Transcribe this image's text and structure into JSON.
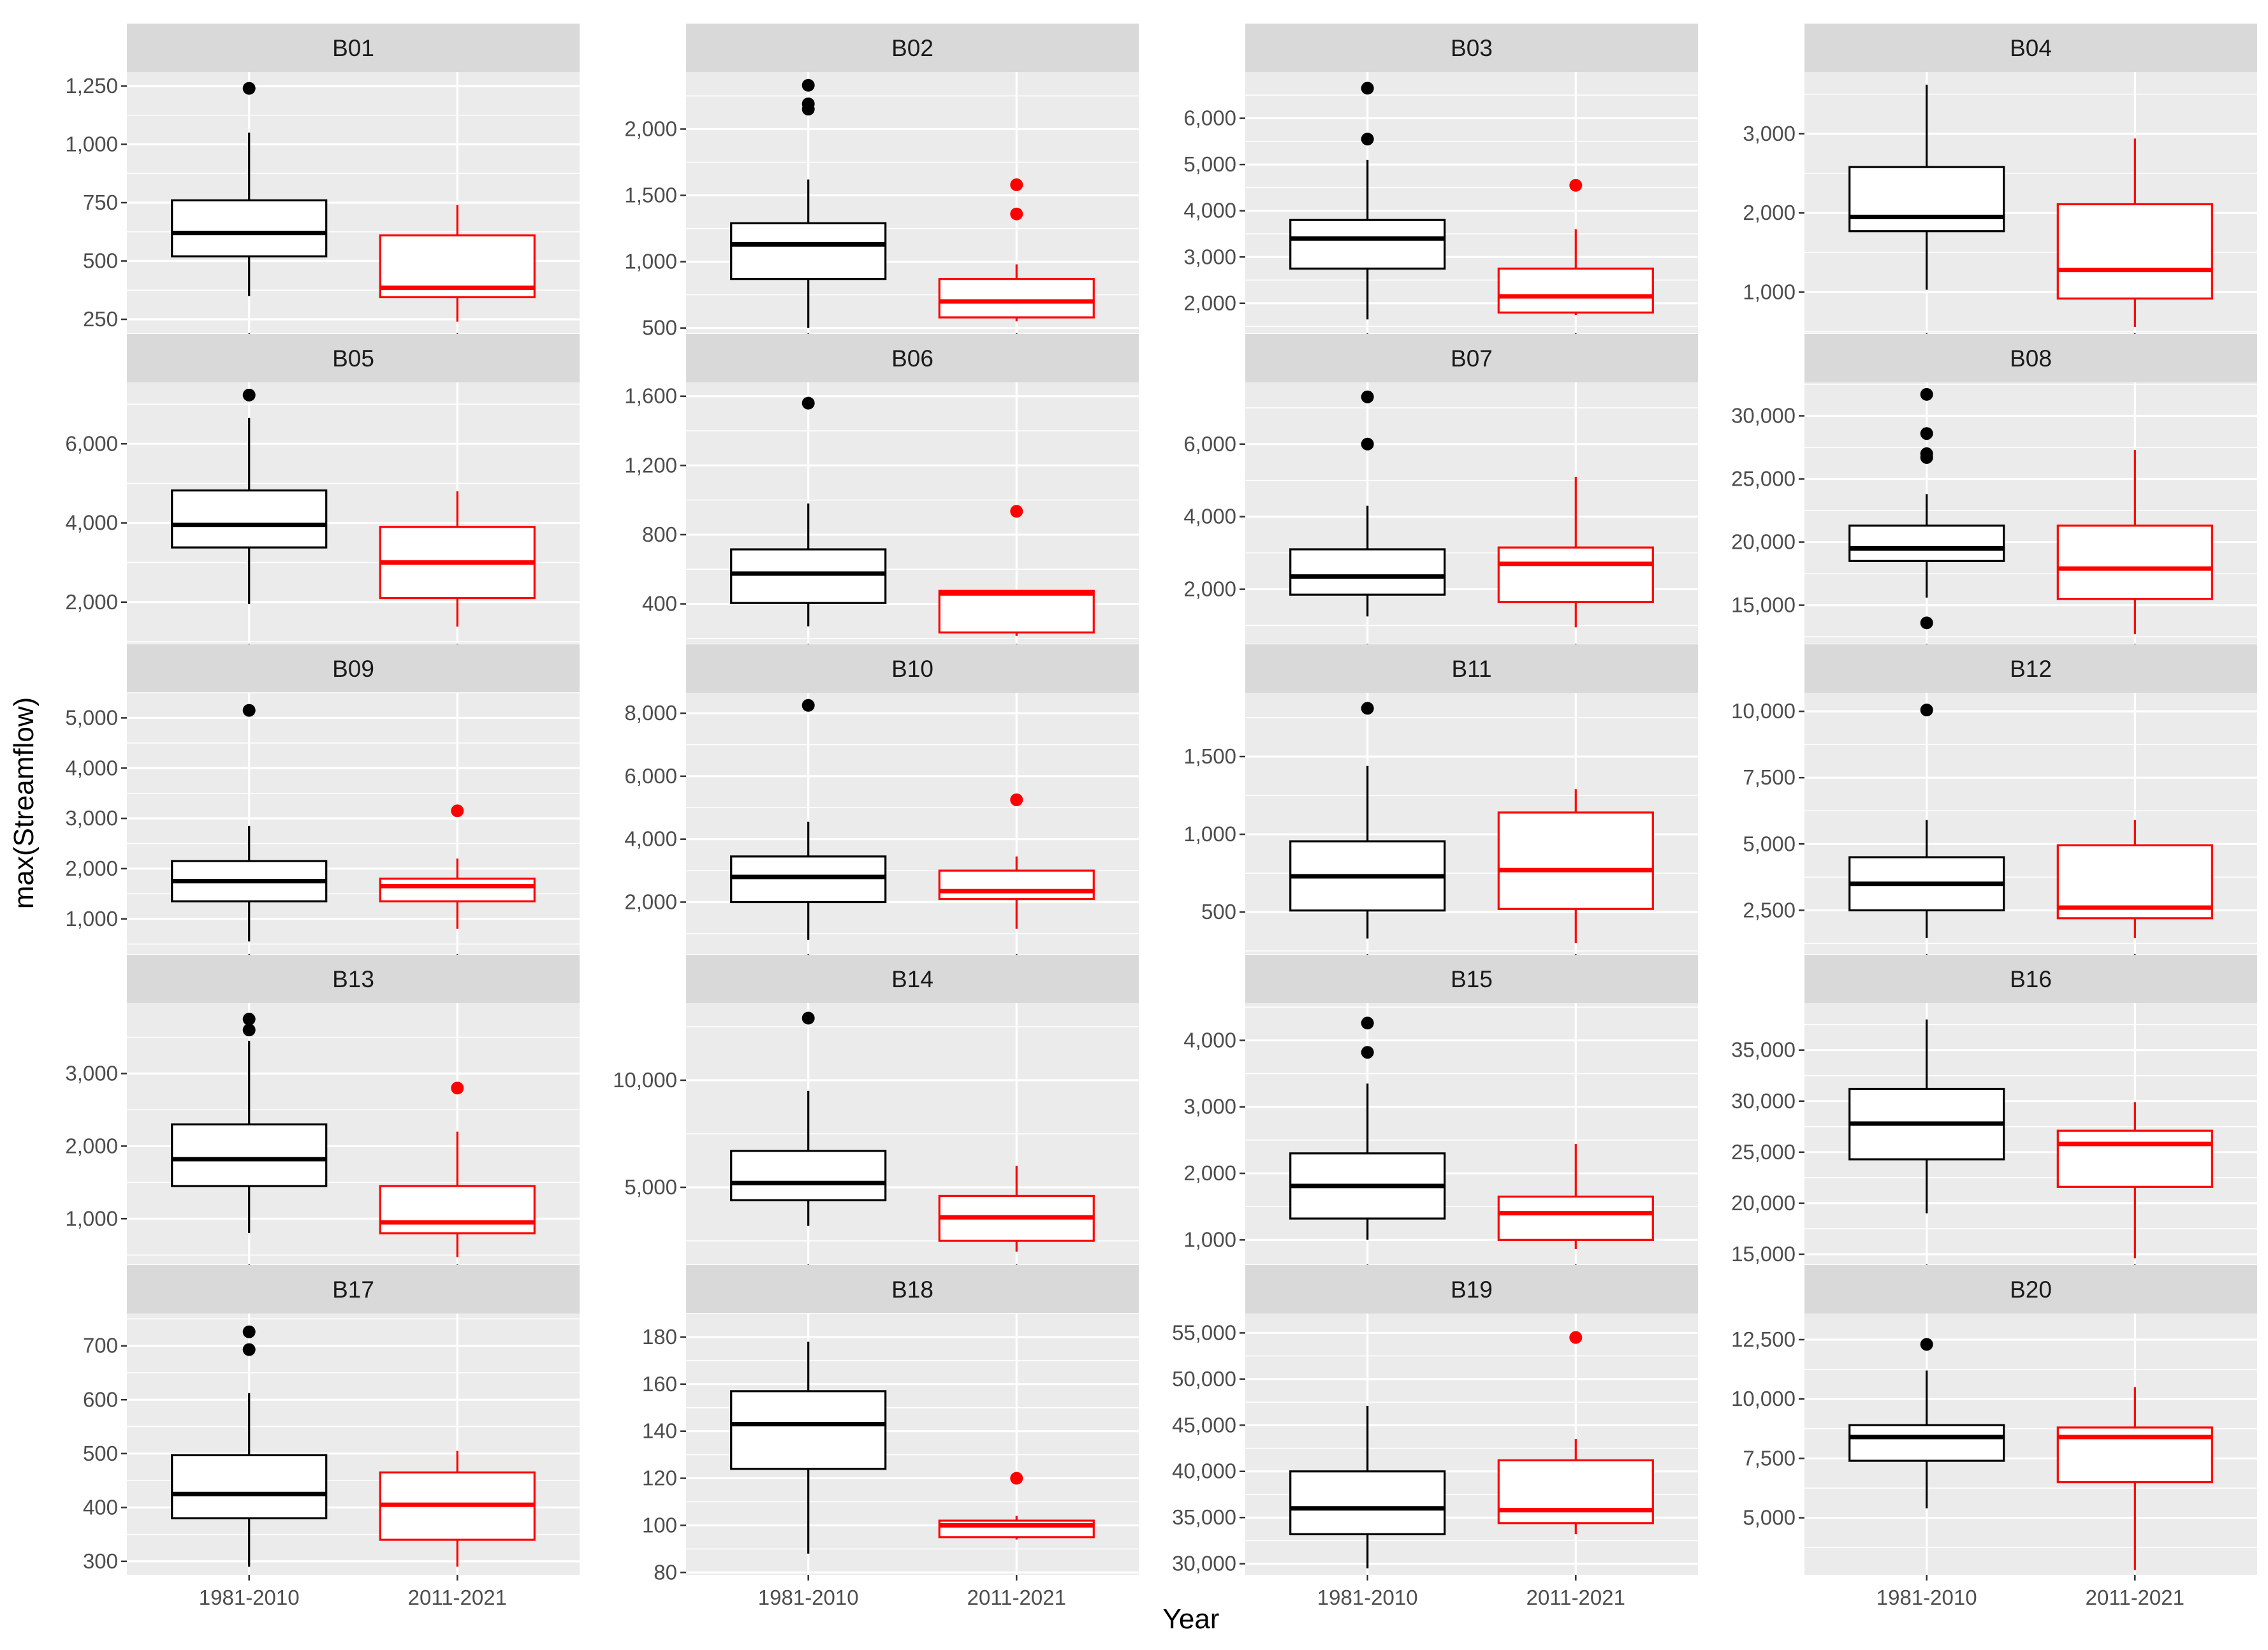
{
  "figure": {
    "xlabel": "Year",
    "ylabel": "max(Streamflow)",
    "categories": [
      "1981-2010",
      "2011-2021"
    ],
    "colors": {
      "1981-2010": "#000000",
      "2011-2021": "#ff0000",
      "panel_background": "#ebebeb",
      "strip_background": "#d9d9d9",
      "gridline": "#ffffff"
    }
  },
  "chart_data": [
    {
      "type": "box",
      "panel": "B01",
      "ylim": [
        190,
        1310
      ],
      "yticks": [
        250,
        500,
        750,
        1000,
        1250
      ],
      "yticklabels": [
        "250",
        "500",
        "750",
        "1,000",
        "1,250"
      ],
      "series": [
        {
          "name": "1981-2010",
          "whisker_low": 350,
          "q1": 520,
          "median": 620,
          "q3": 760,
          "whisker_high": 1050,
          "outliers": [
            1240
          ]
        },
        {
          "name": "2011-2021",
          "whisker_low": 240,
          "q1": 345,
          "median": 385,
          "q3": 610,
          "whisker_high": 740,
          "outliers": []
        }
      ]
    },
    {
      "type": "box",
      "panel": "B02",
      "ylim": [
        460,
        2430
      ],
      "yticks": [
        500,
        1000,
        1500,
        2000
      ],
      "yticklabels": [
        "500",
        "1,000",
        "1,500",
        "2,000"
      ],
      "series": [
        {
          "name": "1981-2010",
          "whisker_low": 500,
          "q1": 870,
          "median": 1130,
          "q3": 1290,
          "whisker_high": 1620,
          "outliers": [
            2150,
            2190,
            2330
          ]
        },
        {
          "name": "2011-2021",
          "whisker_low": 550,
          "q1": 580,
          "median": 700,
          "q3": 870,
          "whisker_high": 980,
          "outliers": [
            1360,
            1580
          ]
        }
      ]
    },
    {
      "type": "box",
      "panel": "B03",
      "ylim": [
        1350,
        7000
      ],
      "yticks": [
        2000,
        3000,
        4000,
        5000,
        6000
      ],
      "yticklabels": [
        "2,000",
        "3,000",
        "4,000",
        "5,000",
        "6,000"
      ],
      "series": [
        {
          "name": "1981-2010",
          "whisker_low": 1650,
          "q1": 2750,
          "median": 3400,
          "q3": 3800,
          "whisker_high": 5100,
          "outliers": [
            5550,
            6650
          ]
        },
        {
          "name": "2011-2021",
          "whisker_low": 1750,
          "q1": 1800,
          "median": 2150,
          "q3": 2750,
          "whisker_high": 3600,
          "outliers": [
            4550
          ]
        }
      ]
    },
    {
      "type": "box",
      "panel": "B04",
      "ylim": [
        480,
        3780
      ],
      "yticks": [
        1000,
        2000,
        3000
      ],
      "yticklabels": [
        "1,000",
        "2,000",
        "3,000"
      ],
      "series": [
        {
          "name": "1981-2010",
          "whisker_low": 1030,
          "q1": 1770,
          "median": 1950,
          "q3": 2580,
          "whisker_high": 3620,
          "outliers": []
        },
        {
          "name": "2011-2021",
          "whisker_low": 560,
          "q1": 920,
          "median": 1280,
          "q3": 2110,
          "whisker_high": 2940,
          "outliers": []
        }
      ]
    },
    {
      "type": "box",
      "panel": "B05",
      "ylim": [
        950,
        7550
      ],
      "yticks": [
        2000,
        4000,
        6000
      ],
      "yticklabels": [
        "2,000",
        "4,000",
        "6,000"
      ],
      "series": [
        {
          "name": "1981-2010",
          "whisker_low": 1950,
          "q1": 3380,
          "median": 3950,
          "q3": 4820,
          "whisker_high": 6650,
          "outliers": [
            7230
          ]
        },
        {
          "name": "2011-2021",
          "whisker_low": 1380,
          "q1": 2100,
          "median": 3000,
          "q3": 3900,
          "whisker_high": 4800,
          "outliers": []
        }
      ]
    },
    {
      "type": "box",
      "panel": "B06",
      "ylim": [
        170,
        1680
      ],
      "yticks": [
        400,
        800,
        1200,
        1600
      ],
      "yticklabels": [
        "400",
        "800",
        "1,200",
        "1,600"
      ],
      "series": [
        {
          "name": "1981-2010",
          "whisker_low": 270,
          "q1": 405,
          "median": 575,
          "q3": 715,
          "whisker_high": 980,
          "outliers": [
            1560
          ]
        },
        {
          "name": "2011-2021",
          "whisker_low": 215,
          "q1": 235,
          "median": 460,
          "q3": 475,
          "whisker_high": 480,
          "outliers": [
            935
          ]
        }
      ]
    },
    {
      "type": "box",
      "panel": "B07",
      "ylim": [
        500,
        7700
      ],
      "yticks": [
        2000,
        4000,
        6000
      ],
      "yticklabels": [
        "2,000",
        "4,000",
        "6,000"
      ],
      "series": [
        {
          "name": "1981-2010",
          "whisker_low": 1250,
          "q1": 1850,
          "median": 2350,
          "q3": 3100,
          "whisker_high": 4300,
          "outliers": [
            6000,
            7300
          ]
        },
        {
          "name": "2011-2021",
          "whisker_low": 950,
          "q1": 1650,
          "median": 2700,
          "q3": 3150,
          "whisker_high": 5100,
          "outliers": []
        }
      ]
    },
    {
      "type": "box",
      "panel": "B08",
      "ylim": [
        11950,
        32650
      ],
      "yticks": [
        15000,
        20000,
        25000,
        30000
      ],
      "yticklabels": [
        "15,000",
        "20,000",
        "25,000",
        "30,000"
      ],
      "series": [
        {
          "name": "1981-2010",
          "whisker_low": 15600,
          "q1": 18500,
          "median": 19500,
          "q3": 21300,
          "whisker_high": 23800,
          "outliers": [
            13600,
            26700,
            27000,
            28600,
            31700
          ]
        },
        {
          "name": "2011-2021",
          "whisker_low": 12700,
          "q1": 15500,
          "median": 17900,
          "q3": 21300,
          "whisker_high": 27300,
          "outliers": []
        }
      ]
    },
    {
      "type": "box",
      "panel": "B09",
      "ylim": [
        300,
        5500
      ],
      "yticks": [
        1000,
        2000,
        3000,
        4000,
        5000
      ],
      "yticklabels": [
        "1,000",
        "2,000",
        "3,000",
        "4,000",
        "5,000"
      ],
      "series": [
        {
          "name": "1981-2010",
          "whisker_low": 550,
          "q1": 1350,
          "median": 1750,
          "q3": 2150,
          "whisker_high": 2850,
          "outliers": [
            5150
          ]
        },
        {
          "name": "2011-2021",
          "whisker_low": 800,
          "q1": 1350,
          "median": 1650,
          "q3": 1800,
          "whisker_high": 2200,
          "outliers": [
            3150
          ]
        }
      ]
    },
    {
      "type": "box",
      "panel": "B10",
      "ylim": [
        350,
        8650
      ],
      "yticks": [
        2000,
        4000,
        6000,
        8000
      ],
      "yticklabels": [
        "2,000",
        "4,000",
        "6,000",
        "8,000"
      ],
      "series": [
        {
          "name": "1981-2010",
          "whisker_low": 800,
          "q1": 2000,
          "median": 2800,
          "q3": 3450,
          "whisker_high": 4550,
          "outliers": [
            8250
          ]
        },
        {
          "name": "2011-2021",
          "whisker_low": 1150,
          "q1": 2100,
          "median": 2350,
          "q3": 3000,
          "whisker_high": 3450,
          "outliers": [
            5250
          ]
        }
      ]
    },
    {
      "type": "box",
      "panel": "B11",
      "ylim": [
        230,
        1910
      ],
      "yticks": [
        500,
        1000,
        1500
      ],
      "yticklabels": [
        "500",
        "1,000",
        "1,500"
      ],
      "series": [
        {
          "name": "1981-2010",
          "whisker_low": 330,
          "q1": 510,
          "median": 730,
          "q3": 955,
          "whisker_high": 1440,
          "outliers": [
            1810
          ]
        },
        {
          "name": "2011-2021",
          "whisker_low": 300,
          "q1": 520,
          "median": 770,
          "q3": 1140,
          "whisker_high": 1290,
          "outliers": []
        }
      ]
    },
    {
      "type": "box",
      "panel": "B12",
      "ylim": [
        850,
        10700
      ],
      "yticks": [
        2500,
        5000,
        7500,
        10000
      ],
      "yticklabels": [
        "2,500",
        "5,000",
        "7,500",
        "10,000"
      ],
      "series": [
        {
          "name": "1981-2010",
          "whisker_low": 1450,
          "q1": 2500,
          "median": 3500,
          "q3": 4500,
          "whisker_high": 5900,
          "outliers": [
            10050
          ]
        },
        {
          "name": "2011-2021",
          "whisker_low": 1450,
          "q1": 2200,
          "median": 2600,
          "q3": 4950,
          "whisker_high": 5900,
          "outliers": []
        }
      ]
    },
    {
      "type": "box",
      "panel": "B13",
      "ylim": [
        370,
        3970
      ],
      "yticks": [
        1000,
        2000,
        3000
      ],
      "yticklabels": [
        "1,000",
        "2,000",
        "3,000"
      ],
      "series": [
        {
          "name": "1981-2010",
          "whisker_low": 800,
          "q1": 1450,
          "median": 1820,
          "q3": 2300,
          "whisker_high": 3450,
          "outliers": [
            3600,
            3750
          ]
        },
        {
          "name": "2011-2021",
          "whisker_low": 470,
          "q1": 800,
          "median": 950,
          "q3": 1450,
          "whisker_high": 2200,
          "outliers": [
            2800
          ]
        }
      ]
    },
    {
      "type": "box",
      "panel": "B14",
      "ylim": [
        1400,
        13600
      ],
      "yticks": [
        5000,
        10000
      ],
      "yticklabels": [
        "5,000",
        "10,000"
      ],
      "series": [
        {
          "name": "1981-2010",
          "whisker_low": 3200,
          "q1": 4400,
          "median": 5200,
          "q3": 6700,
          "whisker_high": 9500,
          "outliers": [
            12900
          ]
        },
        {
          "name": "2011-2021",
          "whisker_low": 2000,
          "q1": 2500,
          "median": 3600,
          "q3": 4600,
          "whisker_high": 6000,
          "outliers": []
        }
      ]
    },
    {
      "type": "box",
      "panel": "B15",
      "ylim": [
        630,
        4560
      ],
      "yticks": [
        1000,
        2000,
        3000,
        4000
      ],
      "yticklabels": [
        "1,000",
        "2,000",
        "3,000",
        "4,000"
      ],
      "series": [
        {
          "name": "1981-2010",
          "whisker_low": 1000,
          "q1": 1320,
          "median": 1810,
          "q3": 2300,
          "whisker_high": 3350,
          "outliers": [
            3820,
            4260
          ]
        },
        {
          "name": "2011-2021",
          "whisker_low": 860,
          "q1": 1000,
          "median": 1400,
          "q3": 1650,
          "whisker_high": 2440,
          "outliers": []
        }
      ]
    },
    {
      "type": "box",
      "panel": "B16",
      "ylim": [
        14000,
        39600
      ],
      "yticks": [
        15000,
        20000,
        25000,
        30000,
        35000
      ],
      "yticklabels": [
        "15,000",
        "20,000",
        "25,000",
        "30,000",
        "35,000"
      ],
      "series": [
        {
          "name": "1981-2010",
          "whisker_low": 19000,
          "q1": 24300,
          "median": 27800,
          "q3": 31200,
          "whisker_high": 38000,
          "outliers": []
        },
        {
          "name": "2011-2021",
          "whisker_low": 14600,
          "q1": 21600,
          "median": 25800,
          "q3": 27100,
          "whisker_high": 29900,
          "outliers": []
        }
      ]
    },
    {
      "type": "box",
      "panel": "B17",
      "ylim": [
        275,
        760
      ],
      "yticks": [
        300,
        400,
        500,
        600,
        700
      ],
      "yticklabels": [
        "300",
        "400",
        "500",
        "600",
        "700"
      ],
      "series": [
        {
          "name": "1981-2010",
          "whisker_low": 290,
          "q1": 380,
          "median": 425,
          "q3": 497,
          "whisker_high": 612,
          "outliers": [
            693,
            726
          ]
        },
        {
          "name": "2011-2021",
          "whisker_low": 290,
          "q1": 340,
          "median": 405,
          "q3": 465,
          "whisker_high": 505,
          "outliers": []
        }
      ]
    },
    {
      "type": "box",
      "panel": "B18",
      "ylim": [
        79,
        190
      ],
      "yticks": [
        80,
        100,
        120,
        140,
        160,
        180
      ],
      "yticklabels": [
        "80",
        "100",
        "120",
        "140",
        "160",
        "180"
      ],
      "series": [
        {
          "name": "1981-2010",
          "whisker_low": 88,
          "q1": 124,
          "median": 143,
          "q3": 157,
          "whisker_high": 178,
          "outliers": []
        },
        {
          "name": "2011-2021",
          "whisker_low": 94,
          "q1": 95,
          "median": 100,
          "q3": 102,
          "whisker_high": 104,
          "outliers": [
            120
          ]
        }
      ]
    },
    {
      "type": "box",
      "panel": "B19",
      "ylim": [
        28800,
        57100
      ],
      "yticks": [
        30000,
        35000,
        40000,
        45000,
        50000,
        55000
      ],
      "yticklabels": [
        "30,000",
        "35,000",
        "40,000",
        "45,000",
        "50,000",
        "55,000"
      ],
      "series": [
        {
          "name": "1981-2010",
          "whisker_low": 29500,
          "q1": 33200,
          "median": 36000,
          "q3": 40000,
          "whisker_high": 47100,
          "outliers": []
        },
        {
          "name": "2011-2021",
          "whisker_low": 33200,
          "q1": 34400,
          "median": 35800,
          "q3": 41200,
          "whisker_high": 43500,
          "outliers": [
            54500
          ]
        }
      ]
    },
    {
      "type": "box",
      "panel": "B20",
      "ylim": [
        2600,
        13600
      ],
      "yticks": [
        5000,
        7500,
        10000,
        12500
      ],
      "yticklabels": [
        "5,000",
        "7,500",
        "10,000",
        "12,500"
      ],
      "series": [
        {
          "name": "1981-2010",
          "whisker_low": 5400,
          "q1": 7400,
          "median": 8400,
          "q3": 8900,
          "whisker_high": 11200,
          "outliers": [
            12300
          ]
        },
        {
          "name": "2011-2021",
          "whisker_low": 2800,
          "q1": 6500,
          "median": 8400,
          "q3": 8800,
          "whisker_high": 10500,
          "outliers": []
        }
      ]
    }
  ]
}
